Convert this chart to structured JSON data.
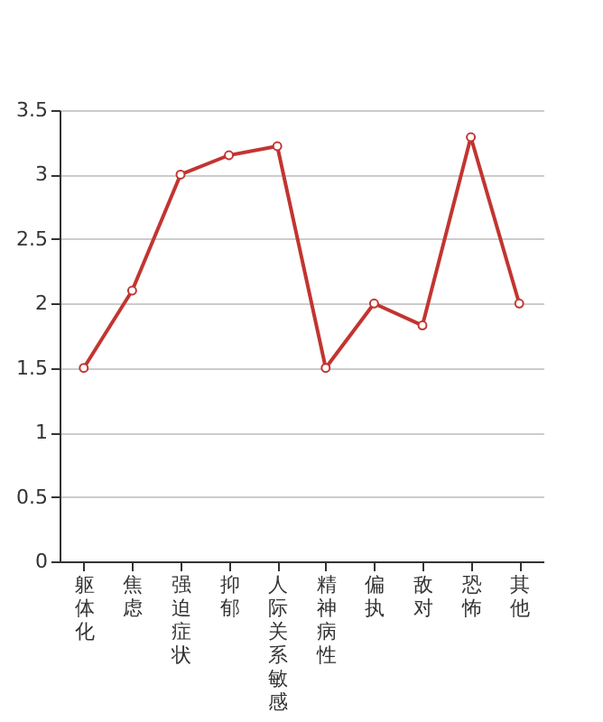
{
  "chart_data": {
    "type": "line",
    "categories": [
      "躯体化",
      "焦虑",
      "强迫症状",
      "抑郁",
      "人际关系敏感",
      "精神病性",
      "偏执",
      "敌对",
      "恐怖",
      "其他"
    ],
    "series": [
      {
        "color": "#c23531",
        "values": [
          1.5,
          2.1,
          3.0,
          3.15,
          3.22,
          1.5,
          2.0,
          1.83,
          3.29,
          2.0
        ]
      }
    ],
    "ylim": [
      0,
      3.5
    ],
    "yticks": [
      0,
      0.5,
      1,
      1.5,
      2,
      2.5,
      3,
      3.5
    ],
    "grid": "y",
    "marker": "circle",
    "line_style": "solid"
  }
}
